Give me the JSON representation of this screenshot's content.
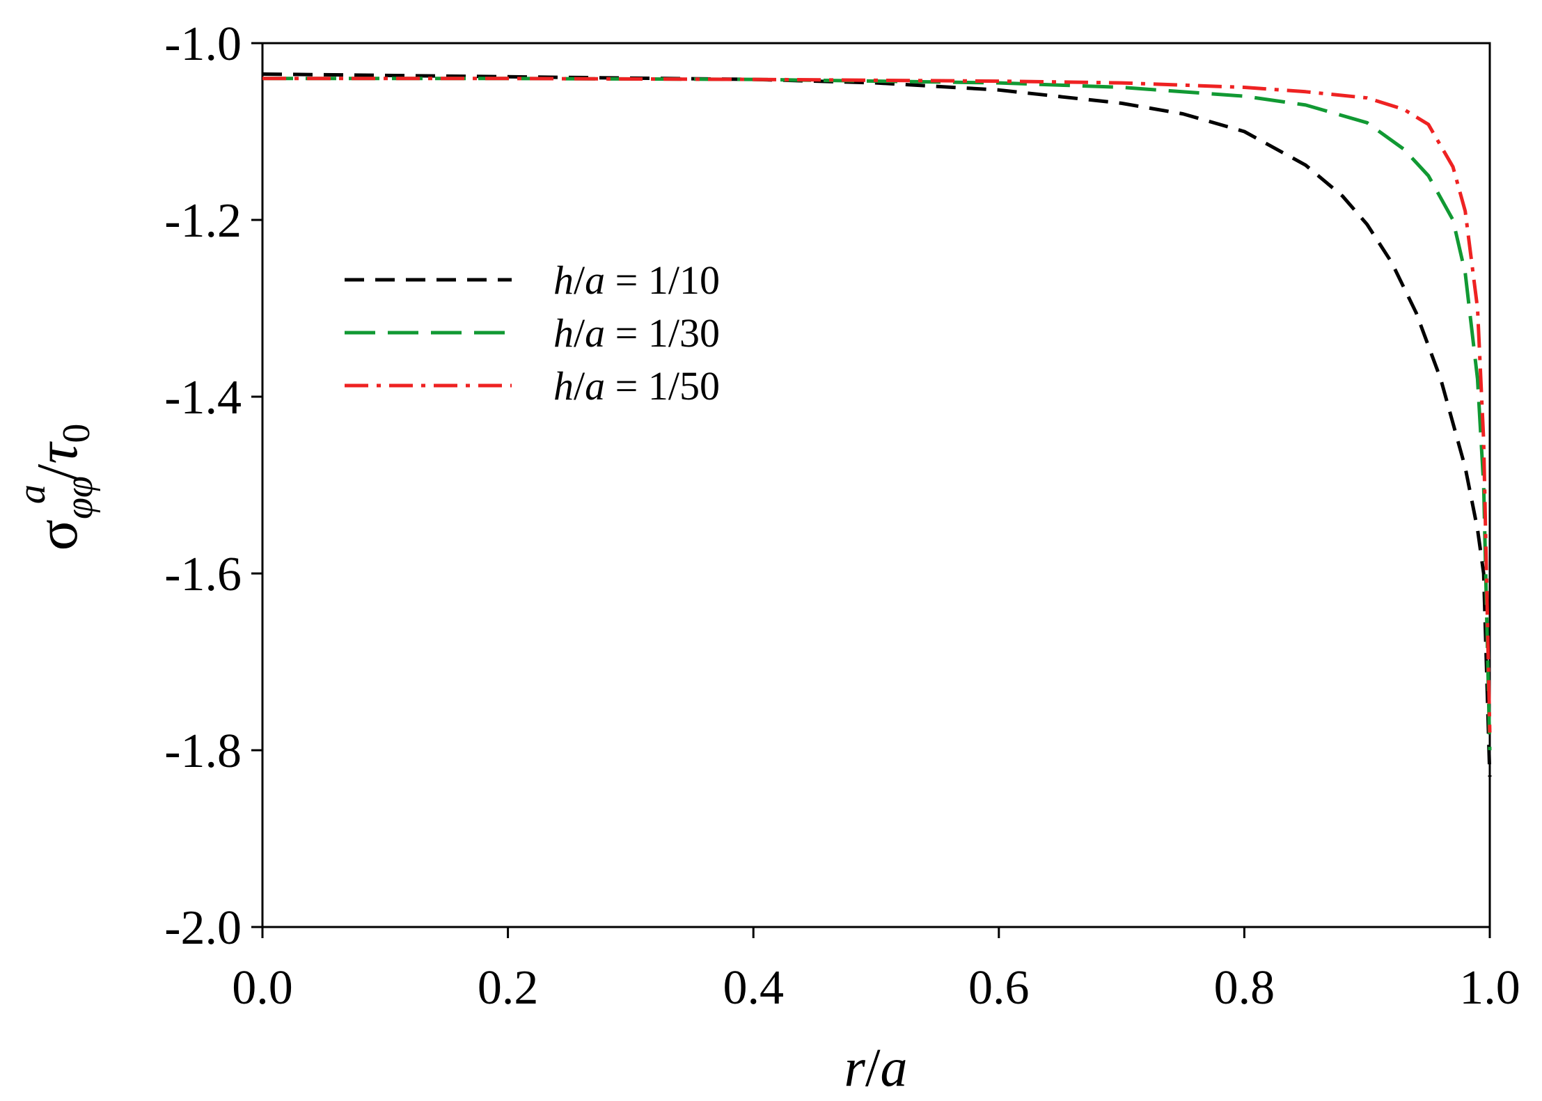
{
  "chart_data": {
    "type": "line",
    "title": "",
    "xlabel": {
      "var1": "r",
      "slash": "/",
      "var2": "a"
    },
    "ylabel": {
      "sigma": "σ",
      "subscript": "φφ",
      "superscript": "a",
      "slash": "/",
      "tau": "τ",
      "tau_sub": "0"
    },
    "xlim": [
      0.0,
      1.0
    ],
    "ylim": [
      -2.0,
      -1.0
    ],
    "xticks": [
      "0.0",
      "0.2",
      "0.4",
      "0.6",
      "0.8",
      "1.0"
    ],
    "yticks": [
      "-1.0",
      "-1.2",
      "-1.4",
      "-1.6",
      "-1.8",
      "-2.0"
    ],
    "grid": false,
    "legend_position": "upper-left",
    "series": [
      {
        "name": "h/a = 1/10",
        "legend": {
          "var1": "h",
          "slash": "/",
          "var2": "a",
          "rest": " = 1/10"
        },
        "color": "#000000",
        "style": "dashed",
        "x": [
          0.0,
          0.2,
          0.4,
          0.5,
          0.6,
          0.7,
          0.75,
          0.8,
          0.85,
          0.88,
          0.9,
          0.92,
          0.94,
          0.96,
          0.97,
          0.98,
          0.99,
          0.995,
          1.0
        ],
        "y": [
          -1.035,
          -1.038,
          -1.041,
          -1.045,
          -1.053,
          -1.068,
          -1.08,
          -1.1,
          -1.138,
          -1.173,
          -1.205,
          -1.248,
          -1.305,
          -1.38,
          -1.43,
          -1.48,
          -1.55,
          -1.6,
          -1.83
        ]
      },
      {
        "name": "h/a = 1/30",
        "legend": {
          "var1": "h",
          "slash": "/",
          "var2": "a",
          "rest": " = 1/30"
        },
        "color": "#119933",
        "style": "longdash",
        "x": [
          0.0,
          0.2,
          0.4,
          0.6,
          0.7,
          0.8,
          0.85,
          0.9,
          0.93,
          0.95,
          0.97,
          0.98,
          0.99,
          0.995,
          1.0
        ],
        "y": [
          -1.04,
          -1.04,
          -1.041,
          -1.045,
          -1.05,
          -1.06,
          -1.07,
          -1.09,
          -1.12,
          -1.15,
          -1.2,
          -1.26,
          -1.38,
          -1.5,
          -1.8
        ]
      },
      {
        "name": "h/a = 1/50",
        "legend": {
          "var1": "h",
          "slash": "/",
          "var2": "a",
          "rest": " = 1/50"
        },
        "color": "#ee2222",
        "style": "dashdot",
        "x": [
          0.0,
          0.2,
          0.4,
          0.6,
          0.7,
          0.8,
          0.85,
          0.9,
          0.93,
          0.95,
          0.97,
          0.98,
          0.99,
          0.995,
          1.0
        ],
        "y": [
          -1.04,
          -1.04,
          -1.041,
          -1.043,
          -1.045,
          -1.05,
          -1.055,
          -1.062,
          -1.075,
          -1.092,
          -1.14,
          -1.19,
          -1.3,
          -1.45,
          -1.78
        ]
      }
    ]
  }
}
